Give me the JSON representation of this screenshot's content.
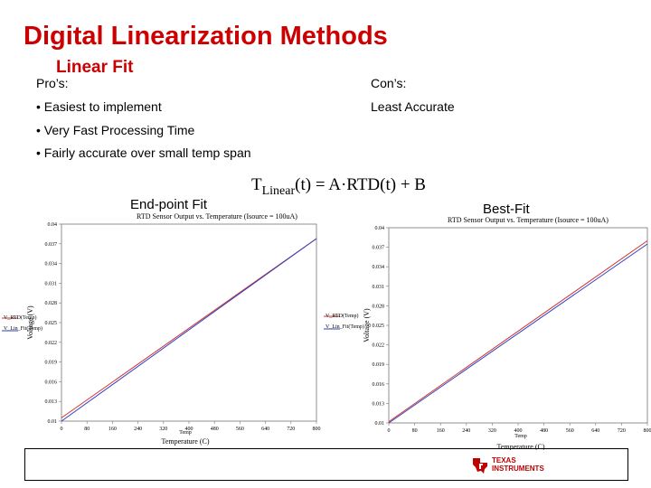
{
  "slide": {
    "title": "Digital Linearization Methods",
    "subtitle": "Linear Fit",
    "pros_label": "Pro’s:",
    "cons_label": "Con’s:",
    "pros": [
      "• Easiest to implement",
      "• Very Fast Processing Time",
      "• Fairly accurate over small temp span"
    ],
    "cons": [
      "Least Accurate"
    ],
    "colors": {
      "title": "#cc0000",
      "rtd_line": "#d03030",
      "fit_line": "#3040c0"
    }
  },
  "formula": {
    "lhs": "T",
    "lhs_sub": "Linear",
    "rhs": "(t) = A·RTD(t) + B"
  },
  "chart_data": [
    {
      "type": "line",
      "label": "End-point Fit",
      "title": "RTD Sensor Output vs. Temperature (Isource = 100uA)",
      "xlabel": "Temperature (C)",
      "xlabel_small": "Temp",
      "ylabel": "Voltage (V)",
      "x_ticks": [
        "0",
        "80",
        "160",
        "240",
        "320",
        "400",
        "480",
        "560",
        "640",
        "720",
        "800"
      ],
      "y_ticks": [
        "0.01",
        "0.013",
        "0.016",
        "0.019",
        "0.022",
        "0.025",
        "0.028",
        "0.031",
        "0.034",
        "0.037",
        "0.04"
      ],
      "xlim": [
        0,
        800
      ],
      "ylim": [
        0.01,
        0.04
      ],
      "legend_labels": [
        "V_RTD(Temp)",
        "V_Lin_Fit(Temp)"
      ],
      "series": [
        {
          "name": "V_RTD(Temp)",
          "color": "#d03030",
          "x": [
            0,
            800
          ],
          "y": [
            0.0105,
            0.0378
          ]
        },
        {
          "name": "V_Lin_Fit(Temp)",
          "color": "#3040c0",
          "x": [
            0,
            800
          ],
          "y": [
            0.01,
            0.0378
          ]
        }
      ]
    },
    {
      "type": "line",
      "label": "Best-Fit",
      "title": "RTD Sensor Output vs. Temperature (Isource = 100uA)",
      "xlabel": "Temperature (C)",
      "xlabel_small": "Temp",
      "ylabel": "Voltage (V)",
      "x_ticks": [
        "0",
        "80",
        "160",
        "240",
        "320",
        "400",
        "480",
        "560",
        "640",
        "720",
        "800"
      ],
      "y_ticks": [
        "0.01",
        "0.013",
        "0.016",
        "0.019",
        "0.022",
        "0.025",
        "0.028",
        "0.031",
        "0.034",
        "0.037",
        "0.04"
      ],
      "xlim": [
        0,
        800
      ],
      "ylim": [
        0.01,
        0.04
      ],
      "legend_labels": [
        "V_RTD(Temp)",
        "V_Lin_Fit(Temp)"
      ],
      "series": [
        {
          "name": "V_RTD(Temp)",
          "color": "#d03030",
          "x": [
            0,
            800
          ],
          "y": [
            0.0102,
            0.038
          ]
        },
        {
          "name": "V_Lin_Fit(Temp)",
          "color": "#3040c0",
          "x": [
            0,
            800
          ],
          "y": [
            0.01,
            0.0375
          ]
        }
      ]
    }
  ],
  "logo": {
    "line1": "TEXAS",
    "line2": "INSTRUMENTS",
    "color": "#c00000"
  }
}
